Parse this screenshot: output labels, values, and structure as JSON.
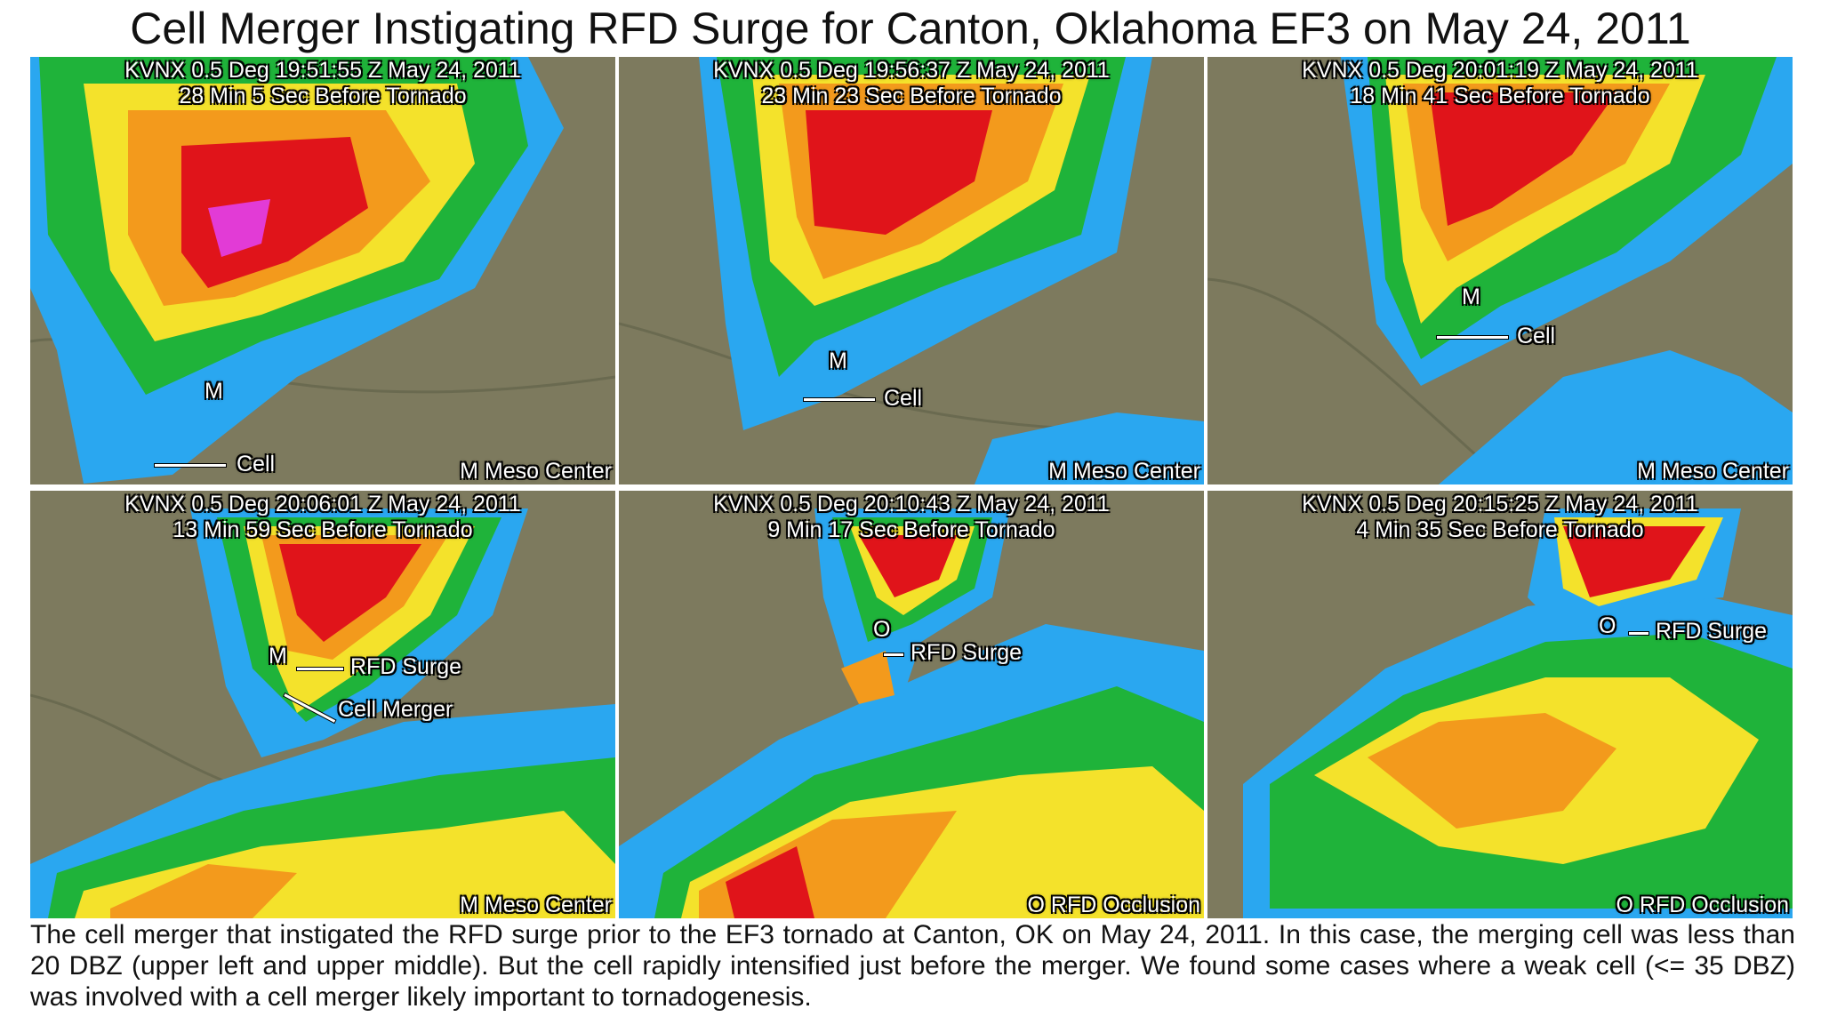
{
  "title": "Cell Merger Instigating RFD Surge for Canton, Oklahoma EF3 on May 24, 2011",
  "panels": [
    {
      "line1": "KVNX  0.5 Deg  19:51:55 Z  May 24, 2011",
      "line2": "28 Min 5 Sec Before Tornado",
      "labels": [
        "M",
        "Cell"
      ],
      "legend": "M  Meso Center"
    },
    {
      "line1": "KVNX  0.5 Deg  19:56:37 Z  May 24, 2011",
      "line2": "23 Min 23 Sec Before Tornado",
      "labels": [
        "M",
        "Cell"
      ],
      "legend": "M  Meso Center"
    },
    {
      "line1": "KVNX  0.5 Deg  20:01:19 Z  May 24, 2011",
      "line2": "18 Min 41 Sec Before Tornado",
      "labels": [
        "M",
        "Cell"
      ],
      "legend": "M  Meso Center"
    },
    {
      "line1": "KVNX  0.5 Deg  20:06:01 Z  May 24, 2011",
      "line2": "13 Min 59 Sec Before Tornado",
      "labels": [
        "M",
        "RFD Surge",
        "Cell Merger"
      ],
      "legend": "M  Meso Center"
    },
    {
      "line1": "KVNX  0.5 Deg  20:10:43 Z  May 24, 2011",
      "line2": "9 Min 17 Sec Before Tornado",
      "labels": [
        "O",
        "RFD Surge"
      ],
      "legend": "O  RFD Occlusion"
    },
    {
      "line1": "KVNX  0.5 Deg  20:15:25 Z  May 24, 2011",
      "line2": "4 Min 35 Sec Before Tornado",
      "labels": [
        "O",
        "RFD Surge"
      ],
      "legend": "O  RFD Occlusion"
    }
  ],
  "caption": "The cell merger that instigated the RFD surge prior to the EF3 tornado at Canton, OK on May 24, 2011. In this case, the merging cell was less than 20 DBZ (upper left and upper middle).  But the cell rapidly intensified just before the merger.  We found some cases where a weak cell (<= 35 DBZ) was involved with a cell merger likely important to tornadogenesis.",
  "colors": {
    "background_terrain": "#7d7a5e",
    "reflectivity_blue": "#2aa7f0",
    "reflectivity_cyan": "#49d6f5",
    "reflectivity_green": "#1fb33a",
    "reflectivity_yellow": "#f4e22b",
    "reflectivity_orange": "#f39a1c",
    "reflectivity_red": "#e0141a",
    "reflectivity_magenta": "#e23bd6"
  }
}
